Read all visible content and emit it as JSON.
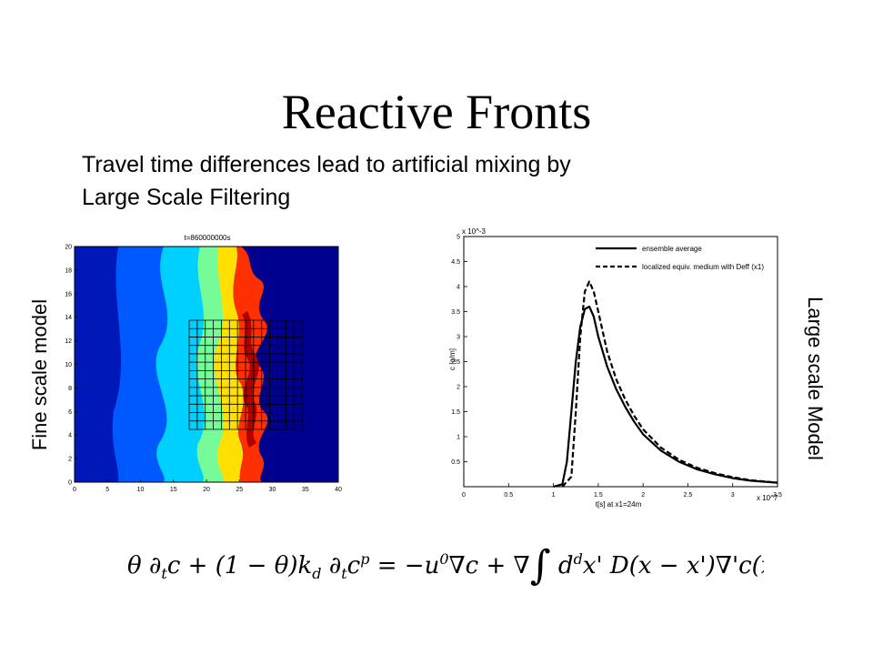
{
  "slide": {
    "title": "Reactive Fronts",
    "subtitle_line1": "Travel time differences lead to artificial mixing by",
    "subtitle_line2": "Large Scale Filtering",
    "left_label": "Fine scale model",
    "right_label": "Large scale Model"
  },
  "left_plot": {
    "header": "t=860000000s",
    "x_ticks": [
      "0",
      "5",
      "10",
      "15",
      "20",
      "25",
      "30",
      "35",
      "40"
    ],
    "y_ticks": [
      "0",
      "2",
      "4",
      "6",
      "8",
      "10",
      "12",
      "14",
      "16",
      "18",
      "20"
    ]
  },
  "chart_data": {
    "type": "line",
    "title": "",
    "xlabel": "t[s] at x1=24m",
    "ylabel": "c [g/m]",
    "x_scale_note": "x 10^7",
    "y_scale_note": "x 10^-3",
    "xlim": [
      0,
      3.5
    ],
    "ylim": [
      0,
      5
    ],
    "x_ticks": [
      "0",
      "0.5",
      "1",
      "1.5",
      "2",
      "2.5",
      "3",
      "3.5"
    ],
    "y_ticks": [
      "0.5",
      "1",
      "1.5",
      "2",
      "2.5",
      "3",
      "3.5",
      "4",
      "4.5",
      "5"
    ],
    "legend_position": "top-right",
    "series": [
      {
        "name": "ensemble average",
        "style": "solid",
        "x": [
          1.0,
          1.1,
          1.15,
          1.2,
          1.25,
          1.3,
          1.35,
          1.4,
          1.45,
          1.5,
          1.6,
          1.7,
          1.8,
          1.9,
          2.0,
          2.2,
          2.4,
          2.6,
          2.8,
          3.0,
          3.2,
          3.5
        ],
        "y": [
          0,
          0.05,
          0.5,
          1.5,
          2.5,
          3.2,
          3.55,
          3.6,
          3.4,
          3.0,
          2.4,
          1.95,
          1.6,
          1.3,
          1.05,
          0.72,
          0.5,
          0.35,
          0.25,
          0.17,
          0.12,
          0.08
        ]
      },
      {
        "name": "localized equiv. medium with Deff (x1)",
        "style": "dashed",
        "x": [
          1.1,
          1.2,
          1.25,
          1.3,
          1.35,
          1.4,
          1.45,
          1.5,
          1.6,
          1.7,
          1.8,
          1.9,
          2.0,
          2.2,
          2.4,
          2.6,
          2.8,
          3.0,
          3.2,
          3.5
        ],
        "y": [
          0,
          0.2,
          1.5,
          3.0,
          3.9,
          4.1,
          3.9,
          3.5,
          2.7,
          2.15,
          1.75,
          1.42,
          1.15,
          0.78,
          0.54,
          0.38,
          0.27,
          0.19,
          0.13,
          0.08
        ]
      }
    ]
  }
}
